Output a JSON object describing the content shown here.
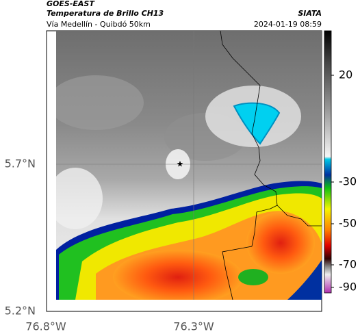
{
  "header": {
    "product": "GOES-EAST",
    "title": "Temperatura de Brillo CH13",
    "source": "SIATA",
    "subtitle": "Vía Medellín - Quibdó 50km",
    "timestamp": "2024-01-19 08:59"
  },
  "axes": {
    "y_labels": [
      "5.7°N",
      "5.2°N"
    ],
    "x_labels": [
      "76.8°W",
      "76.3°W"
    ]
  },
  "colorbar": {
    "labels": [
      "20",
      "-30",
      "-50",
      "-70",
      "-90"
    ]
  }
}
